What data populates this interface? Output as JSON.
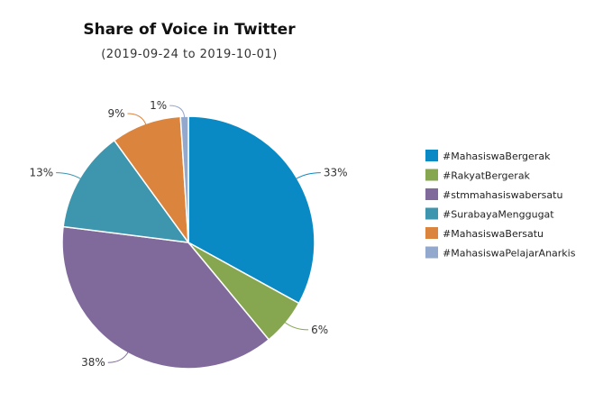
{
  "chart_data": {
    "type": "pie",
    "title": "Share of Voice in Twitter",
    "subtitle": "(2019-09-24 to 2019-10-01)",
    "categories": [
      "#MahasiswaBergerak",
      "#RakyatBergerak",
      "#stmmahasiswabersatu",
      "#SurabayaMenggugat",
      "#MahasiswaBersatu",
      "#MahasiswaPelajarAnarkis"
    ],
    "values": [
      33,
      6,
      38,
      13,
      9,
      1
    ],
    "labels": [
      "33%",
      "6%",
      "38%",
      "13%",
      "9%",
      "1%"
    ],
    "colors": [
      "#0a8ac4",
      "#86a650",
      "#80699b",
      "#3d96ae",
      "#db843d",
      "#92a8cd"
    ],
    "legend_position": "right"
  }
}
